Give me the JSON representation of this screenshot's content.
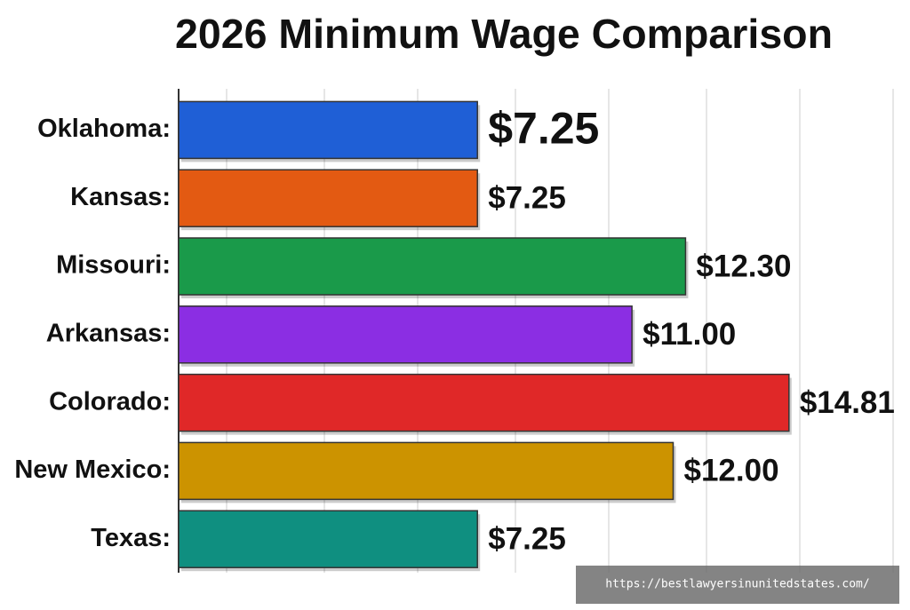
{
  "chart_data": {
    "type": "bar",
    "orientation": "horizontal",
    "title": "2026 Minimum Wage Comparison",
    "categories": [
      "Oklahoma:",
      "Kansas:",
      "Missouri:",
      "Arkansas:",
      "Colorado:",
      "New Mexico:",
      "Texas:"
    ],
    "values": [
      7.25,
      7.25,
      12.3,
      11.0,
      14.81,
      12.0,
      7.25
    ],
    "value_labels": [
      "$7.25",
      "$7.25",
      "$12.30",
      "$11.00",
      "$14.81",
      "$12.00",
      "$7.25"
    ],
    "colors": [
      "#1f5fd6",
      "#e35a12",
      "#1a9a4a",
      "#8b2ee3",
      "#e02828",
      "#cc9300",
      "#0f8f80"
    ],
    "xlim": [
      0,
      16
    ]
  },
  "watermark": "https://bestlawyersinunitedstates.com/"
}
